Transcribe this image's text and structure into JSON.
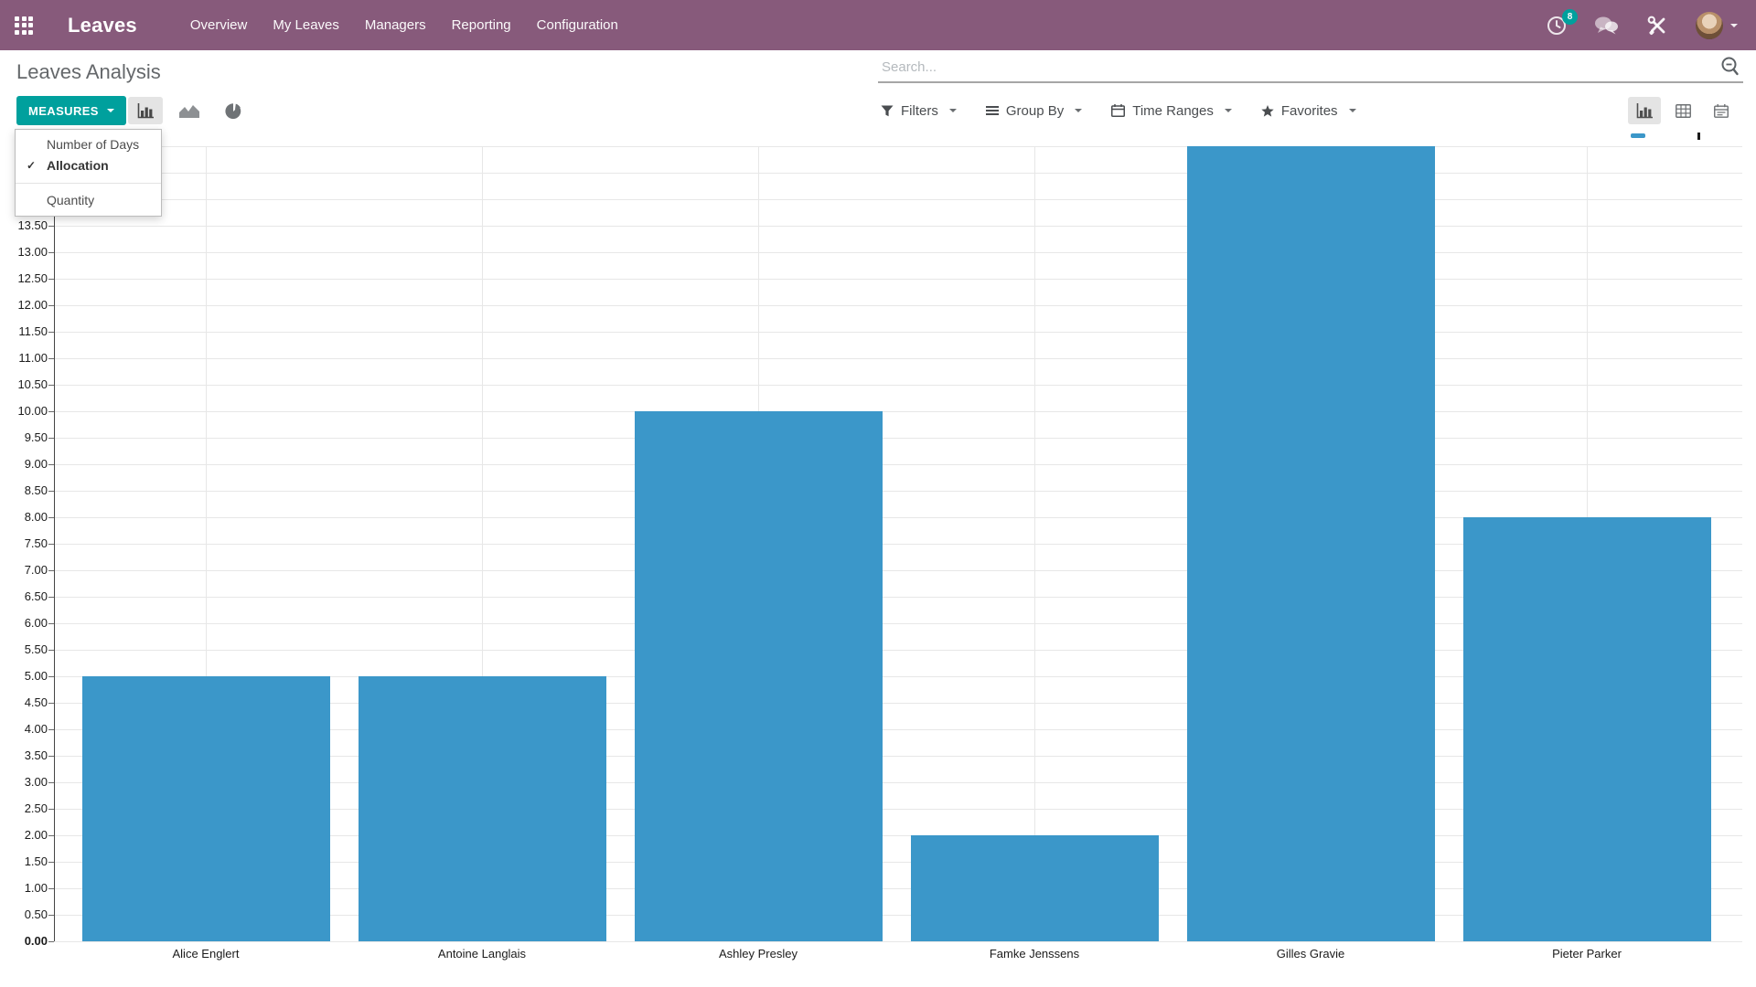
{
  "navbar": {
    "app_name": "Leaves",
    "menu_items": [
      "Overview",
      "My Leaves",
      "Managers",
      "Reporting",
      "Configuration"
    ],
    "activity_badge": "8",
    "colors": {
      "navbar_bg": "#875a7b",
      "badge": "#00a09d"
    }
  },
  "breadcrumb": {
    "title": "Leaves Analysis"
  },
  "search": {
    "placeholder": "Search..."
  },
  "toolbar": {
    "measures_button": "MEASURES",
    "measures_menu": {
      "items": [
        {
          "label": "Number of Days",
          "checked": false
        },
        {
          "label": "Allocation",
          "checked": true
        },
        {
          "label": "Quantity",
          "checked": false
        }
      ]
    },
    "chart_types": [
      "bar",
      "area",
      "pie"
    ],
    "active_chart_type": "bar",
    "filter_menus": [
      {
        "label": "Filters",
        "icon": "filter-icon"
      },
      {
        "label": "Group By",
        "icon": "group-by-icon"
      },
      {
        "label": "Time Ranges",
        "icon": "calendar-icon"
      },
      {
        "label": "Favorites",
        "icon": "star-icon"
      }
    ],
    "view_switcher": [
      "graph",
      "pivot",
      "calendar"
    ],
    "active_view": "graph"
  },
  "chart_data": {
    "type": "bar",
    "title": "",
    "categories": [
      "Alice Englert",
      "Antoine Langlais",
      "Ashley Presley",
      "Famke Jenssens",
      "Gilles Gravie",
      "Pieter Parker"
    ],
    "series": [
      {
        "name": "Allocation",
        "values": [
          5.0,
          5.0,
          10.0,
          2.0,
          15.0,
          8.0
        ]
      }
    ],
    "xlabel": "",
    "ylabel": "",
    "ylim": [
      0,
      15
    ],
    "ytick_step": 0.5,
    "ytick_format_decimals": 2,
    "grid": true,
    "legend_position": "top-right",
    "bar_color": "#3b97c9"
  }
}
